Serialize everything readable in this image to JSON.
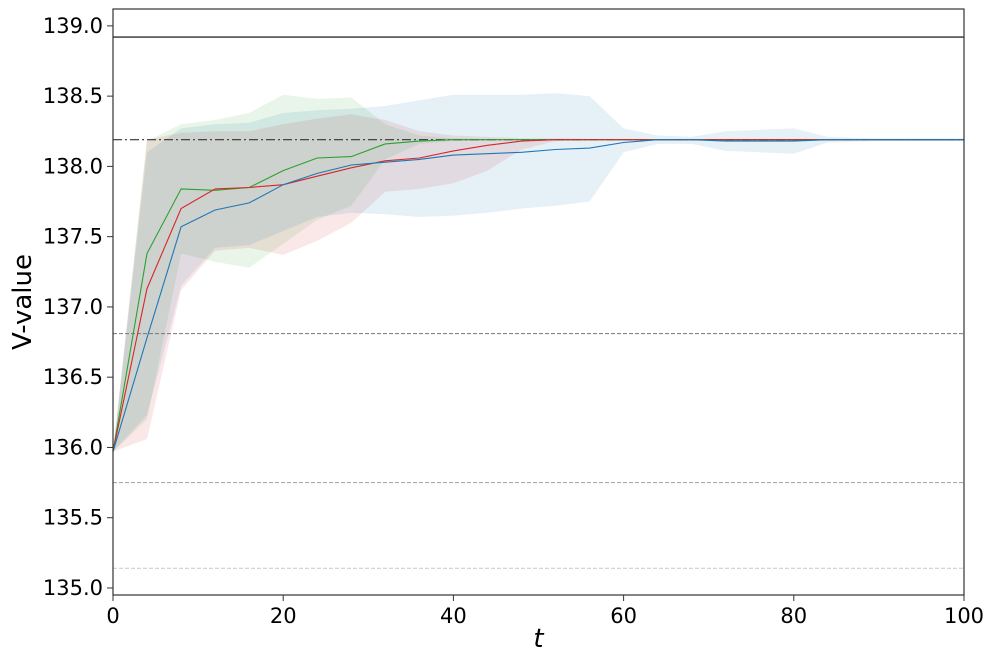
{
  "chart_data": {
    "type": "line",
    "xlabel": "t",
    "ylabel": "V-value",
    "xlim": [
      0,
      100
    ],
    "ylim": [
      134.95,
      139.12
    ],
    "x_ticks": [
      "0",
      "20",
      "40",
      "60",
      "80",
      "100"
    ],
    "y_ticks": [
      "135.0",
      "135.5",
      "136.0",
      "136.5",
      "137.0",
      "137.5",
      "138.0",
      "138.5",
      "139.0"
    ],
    "grid": false,
    "reference_lines": [
      {
        "y": 138.92,
        "style": "solid",
        "color": "#000000"
      },
      {
        "y": 138.19,
        "style": "dashdot",
        "color": "#333333"
      },
      {
        "y": 136.81,
        "style": "dashed",
        "color": "#777777"
      },
      {
        "y": 135.75,
        "style": "dashed",
        "color": "#aaaaaa"
      },
      {
        "y": 135.14,
        "style": "dashed",
        "color": "#d0d0d0"
      }
    ],
    "series": [
      {
        "color": "#2ca02c",
        "fill": "#2ca02c",
        "x": [
          0,
          4,
          8,
          12,
          16,
          20,
          24,
          28,
          32,
          36,
          40,
          50,
          60,
          70,
          80,
          90,
          100
        ],
        "y": [
          135.97,
          137.38,
          137.84,
          137.83,
          137.85,
          137.97,
          138.06,
          138.07,
          138.16,
          138.18,
          138.19,
          138.19,
          138.19,
          138.19,
          138.19,
          138.19,
          138.19
        ],
        "upper": [
          135.97,
          138.18,
          138.3,
          138.33,
          138.38,
          138.51,
          138.48,
          138.49,
          138.3,
          138.22,
          138.2,
          138.19,
          138.19,
          138.19,
          138.19,
          138.19,
          138.19
        ],
        "lower": [
          135.97,
          136.2,
          137.38,
          137.32,
          137.28,
          137.45,
          137.62,
          137.72,
          138.05,
          138.16,
          138.18,
          138.19,
          138.19,
          138.19,
          138.19,
          138.19,
          138.19
        ]
      },
      {
        "color": "#d62728",
        "fill": "#d62728",
        "x": [
          0,
          4,
          8,
          12,
          16,
          20,
          24,
          28,
          32,
          36,
          40,
          44,
          48,
          52,
          60,
          70,
          80,
          90,
          100
        ],
        "y": [
          135.97,
          137.13,
          137.7,
          137.84,
          137.85,
          137.87,
          137.93,
          137.99,
          138.04,
          138.06,
          138.11,
          138.15,
          138.18,
          138.19,
          138.19,
          138.19,
          138.19,
          138.19,
          138.19
        ],
        "upper": [
          135.97,
          138.19,
          138.24,
          138.25,
          138.25,
          138.3,
          138.34,
          138.37,
          138.33,
          138.25,
          138.22,
          138.21,
          138.2,
          138.2,
          138.19,
          138.19,
          138.19,
          138.19,
          138.19
        ],
        "lower": [
          135.97,
          136.06,
          137.12,
          137.4,
          137.42,
          137.37,
          137.47,
          137.6,
          137.82,
          137.84,
          137.88,
          137.97,
          138.12,
          138.18,
          138.19,
          138.19,
          138.19,
          138.19,
          138.19
        ]
      },
      {
        "color": "#1f77b4",
        "fill": "#1f77b4",
        "x": [
          0,
          4,
          8,
          12,
          16,
          20,
          24,
          28,
          32,
          36,
          40,
          44,
          48,
          52,
          56,
          60,
          64,
          68,
          72,
          76,
          80,
          84,
          90,
          100
        ],
        "y": [
          135.97,
          136.78,
          137.57,
          137.69,
          137.74,
          137.87,
          137.95,
          138.01,
          138.03,
          138.05,
          138.08,
          138.09,
          138.1,
          138.12,
          138.13,
          138.17,
          138.19,
          138.19,
          138.18,
          138.18,
          138.18,
          138.19,
          138.19,
          138.19
        ],
        "upper": [
          135.97,
          138.1,
          138.27,
          138.3,
          138.31,
          138.38,
          138.4,
          138.41,
          138.43,
          138.47,
          138.51,
          138.51,
          138.51,
          138.52,
          138.5,
          138.27,
          138.22,
          138.21,
          138.25,
          138.26,
          138.27,
          138.21,
          138.2,
          138.2
        ],
        "lower": [
          135.97,
          136.23,
          137.15,
          137.42,
          137.44,
          137.54,
          137.64,
          137.67,
          137.66,
          137.64,
          137.65,
          137.67,
          137.7,
          137.72,
          137.75,
          138.1,
          138.16,
          138.16,
          138.11,
          138.1,
          138.09,
          138.17,
          138.18,
          138.18
        ]
      }
    ]
  }
}
